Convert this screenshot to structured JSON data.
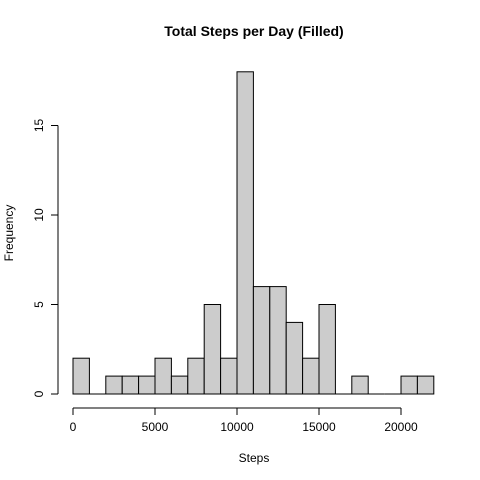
{
  "chart_data": {
    "type": "bar",
    "title": "Total Steps per Day (Filled)",
    "xlabel": "Steps",
    "ylabel": "Frequency",
    "bin_width": 1000,
    "bins": [
      {
        "start": 0,
        "end": 1000,
        "count": 2
      },
      {
        "start": 1000,
        "end": 2000,
        "count": 0
      },
      {
        "start": 2000,
        "end": 3000,
        "count": 1
      },
      {
        "start": 3000,
        "end": 4000,
        "count": 1
      },
      {
        "start": 4000,
        "end": 5000,
        "count": 1
      },
      {
        "start": 5000,
        "end": 6000,
        "count": 2
      },
      {
        "start": 6000,
        "end": 7000,
        "count": 1
      },
      {
        "start": 7000,
        "end": 8000,
        "count": 2
      },
      {
        "start": 8000,
        "end": 9000,
        "count": 5
      },
      {
        "start": 9000,
        "end": 10000,
        "count": 2
      },
      {
        "start": 10000,
        "end": 11000,
        "count": 18
      },
      {
        "start": 11000,
        "end": 12000,
        "count": 6
      },
      {
        "start": 12000,
        "end": 13000,
        "count": 6
      },
      {
        "start": 13000,
        "end": 14000,
        "count": 4
      },
      {
        "start": 14000,
        "end": 15000,
        "count": 2
      },
      {
        "start": 15000,
        "end": 16000,
        "count": 5
      },
      {
        "start": 16000,
        "end": 17000,
        "count": 0
      },
      {
        "start": 17000,
        "end": 18000,
        "count": 1
      },
      {
        "start": 18000,
        "end": 19000,
        "count": 0
      },
      {
        "start": 19000,
        "end": 20000,
        "count": 0
      },
      {
        "start": 20000,
        "end": 21000,
        "count": 1
      },
      {
        "start": 21000,
        "end": 22000,
        "count": 1
      }
    ],
    "xlim": [
      0,
      22000
    ],
    "ylim": [
      0,
      18
    ],
    "x_ticks": [
      0,
      5000,
      10000,
      15000,
      20000
    ],
    "y_ticks": [
      0,
      5,
      10,
      15
    ],
    "grid": false,
    "colors": {
      "bar_fill": "#cccccc",
      "bar_stroke": "#000000"
    }
  }
}
